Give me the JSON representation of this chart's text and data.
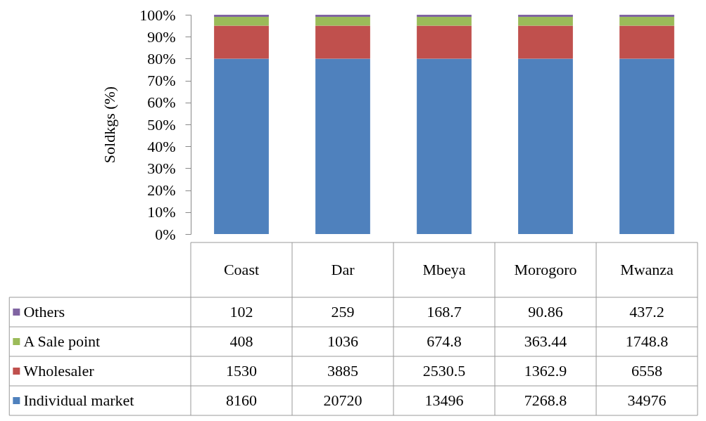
{
  "chart_data": {
    "type": "bar",
    "stacked": true,
    "ylabel": "Soldkgs (%)",
    "categories": [
      "Coast",
      "Dar",
      "Mbeya",
      "Morogoro",
      "Mwanza"
    ],
    "series": [
      {
        "name": "Individual market",
        "color": "#4f81bd",
        "values": [
          80,
          80,
          80,
          80,
          80
        ]
      },
      {
        "name": "Wholesaler",
        "color": "#c0504d",
        "values": [
          15,
          15,
          15,
          15,
          15
        ]
      },
      {
        "name": "A Sale point",
        "color": "#9bbb59",
        "values": [
          4,
          4,
          4,
          4,
          4
        ]
      },
      {
        "name": "Others",
        "color": "#8064a2",
        "values": [
          1,
          1,
          1,
          1,
          1
        ]
      }
    ],
    "annotations": [
      "102",
      "259",
      "168.7",
      "90.86",
      "437.2",
      "408",
      "1036",
      "674.8",
      "363.44",
      "1748.8",
      "1530",
      "3885",
      "2530.5",
      "1362.9",
      "6558",
      "8160",
      "20720",
      "13496",
      "7268.8",
      "34976"
    ],
    "ylim": [
      0,
      100
    ],
    "yticks": [
      {
        "value": 0,
        "label": "0%"
      },
      {
        "value": 10,
        "label": "10%"
      },
      {
        "value": 20,
        "label": "20%"
      },
      {
        "value": 30,
        "label": "30%"
      },
      {
        "value": 40,
        "label": "40%"
      },
      {
        "value": 50,
        "label": "50%"
      },
      {
        "value": 60,
        "label": "60%"
      },
      {
        "value": 70,
        "label": "70%"
      },
      {
        "value": 80,
        "label": "80%"
      },
      {
        "value": 90,
        "label": "90%"
      },
      {
        "value": 100,
        "label": "100%"
      }
    ],
    "legend": "bottom left"
  }
}
